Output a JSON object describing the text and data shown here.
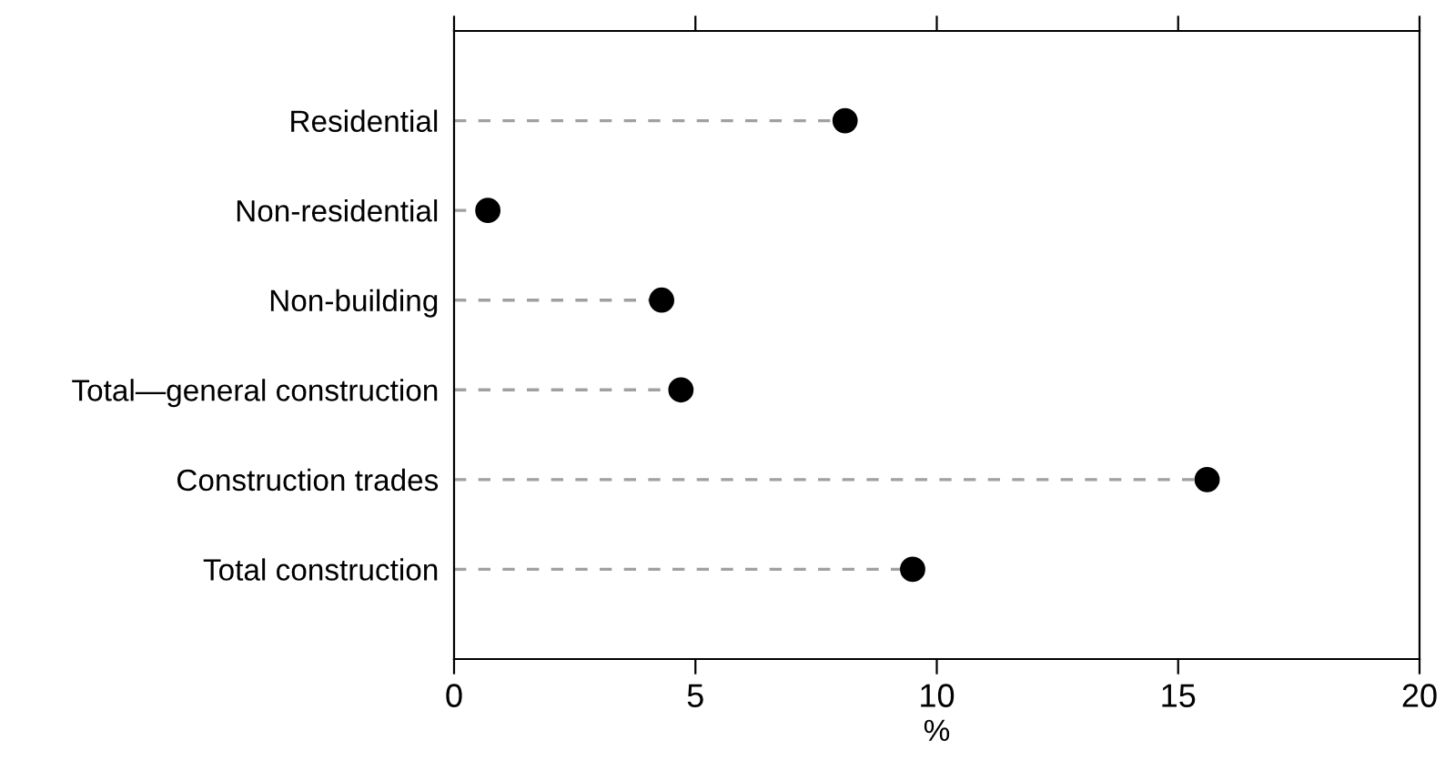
{
  "chart_data": {
    "type": "lollipop",
    "orientation": "horizontal",
    "xlabel": "%",
    "categories": [
      "Residential",
      "Non-residential",
      "Non-building",
      "Total—general construction",
      "Construction trades",
      "Total construction"
    ],
    "values": [
      8.1,
      0.7,
      4.3,
      4.7,
      15.6,
      9.5
    ],
    "color": "#000000",
    "marker": "circle",
    "line_style": "dashed",
    "xlim": [
      0,
      20
    ],
    "xticks": [
      0,
      5,
      10,
      15,
      20
    ],
    "grid": false,
    "legend": false
  }
}
